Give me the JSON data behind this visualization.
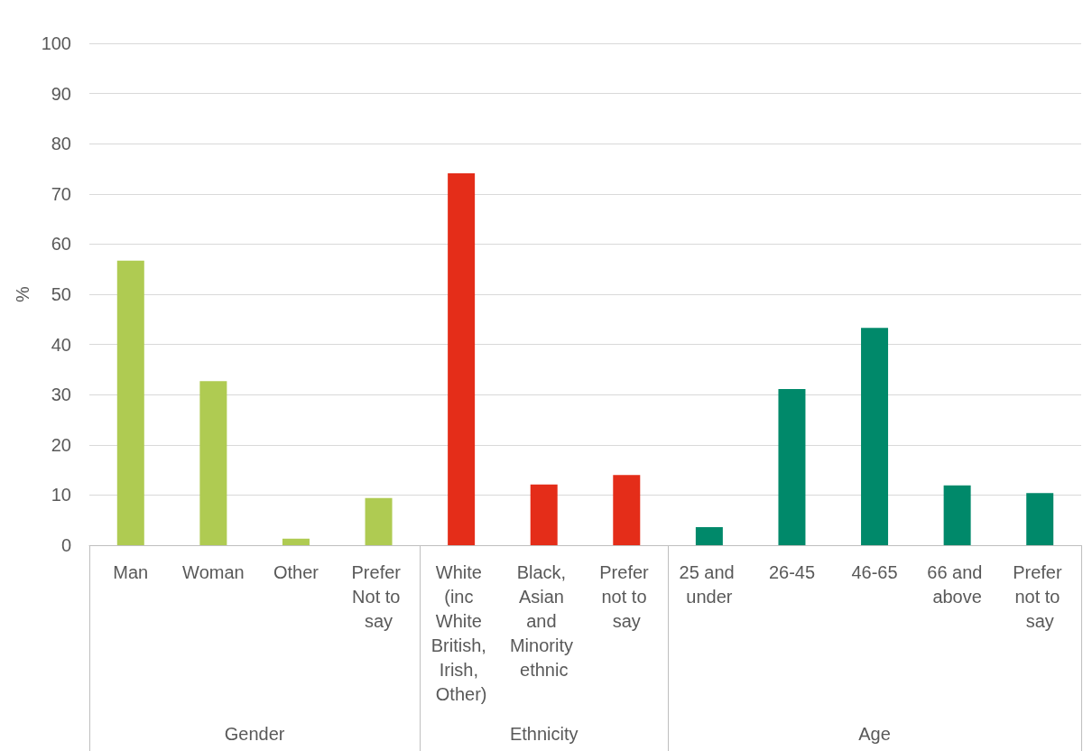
{
  "chart_data": {
    "type": "bar",
    "ylabel": "%",
    "categories": [
      "Man",
      "Woman",
      "Other",
      "Prefer Not to say",
      "White (inc White British, Irish, Other)",
      "Black, Asian and Minority ethnic",
      "Prefer not to say",
      "25 and under",
      "26-45",
      "46-65",
      "66 and above",
      "Prefer not to say"
    ],
    "series": [
      {
        "color": "#afcb52",
        "values": [
          56.7,
          32.7,
          1.3,
          9.4,
          null,
          null,
          null,
          null,
          null,
          null,
          null,
          null
        ]
      },
      {
        "color": "#e42d19",
        "values": [
          null,
          null,
          null,
          null,
          74.1,
          12.1,
          14.0,
          null,
          null,
          null,
          null,
          null
        ]
      },
      {
        "color": "#00896a",
        "values": [
          null,
          null,
          null,
          null,
          null,
          null,
          null,
          3.6,
          31.1,
          43.3,
          11.9,
          10.4
        ]
      }
    ],
    "ylim": [
      0,
      100
    ],
    "yticks": [
      0,
      10,
      20,
      30,
      40,
      50,
      60,
      70,
      80,
      90,
      100
    ],
    "annotations": [
      "Gender",
      "Ethnicity",
      "Age"
    ],
    "grid": "y"
  }
}
